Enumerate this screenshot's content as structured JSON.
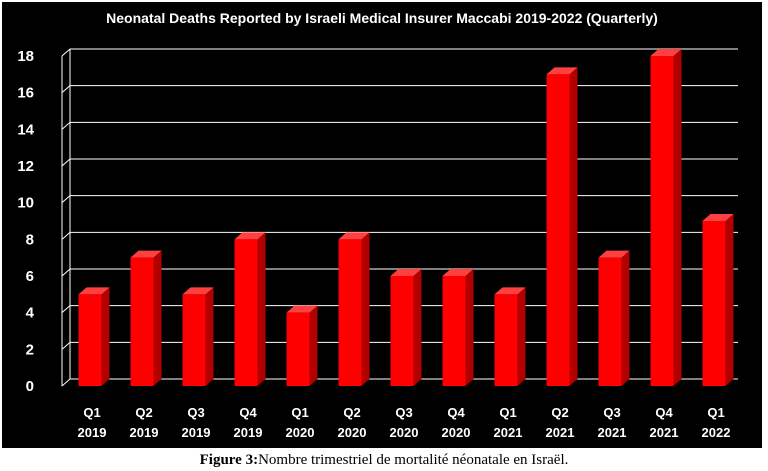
{
  "chart_data": {
    "type": "bar",
    "title": "Neonatal Deaths Reported by Israeli Medical Insurer Maccabi 2019-2022 (Quarterly)",
    "categories": [
      [
        "Q1",
        "2019"
      ],
      [
        "Q2",
        "2019"
      ],
      [
        "Q3",
        "2019"
      ],
      [
        "Q4",
        "2019"
      ],
      [
        "Q1",
        "2020"
      ],
      [
        "Q2",
        "2020"
      ],
      [
        "Q3",
        "2020"
      ],
      [
        "Q4",
        "2020"
      ],
      [
        "Q1",
        "2021"
      ],
      [
        "Q2",
        "2021"
      ],
      [
        "Q3",
        "2021"
      ],
      [
        "Q4",
        "2021"
      ],
      [
        "Q1",
        "2022"
      ]
    ],
    "values": [
      5,
      7,
      5,
      8,
      4,
      8,
      6,
      6,
      5,
      17,
      7,
      18,
      9
    ],
    "ylim": [
      0,
      18
    ],
    "yticks": [
      0,
      2,
      4,
      6,
      8,
      10,
      12,
      14,
      16,
      18
    ],
    "grid": true,
    "legend": "none",
    "colors": {
      "background": "#000000",
      "bar_front": "#ff0000",
      "bar_side": "#b00000",
      "bar_top": "#ff4040",
      "gridline": "#ffffff",
      "text": "#ffffff"
    }
  },
  "caption": {
    "label": "Figure 3:",
    "text": "Nombre trimestriel de mortalité néonatale en Israël."
  }
}
